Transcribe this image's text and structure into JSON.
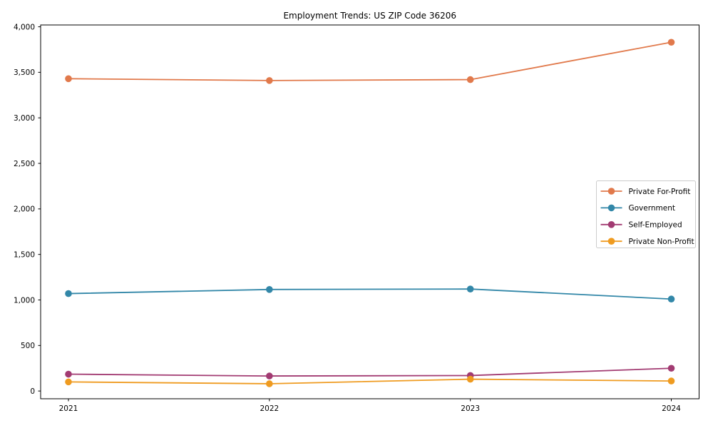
{
  "figure": {
    "title": "Employment Trends: US ZIP Code 36206"
  },
  "chart_data": {
    "type": "line",
    "title": "Employment Trends: US ZIP Code 36206",
    "categories": [
      "2021",
      "2022",
      "2023",
      "2024"
    ],
    "series": [
      {
        "name": "Private For-Profit",
        "color": "#e1794b",
        "values": [
          3430,
          3410,
          3420,
          3830
        ]
      },
      {
        "name": "Government",
        "color": "#3287a8",
        "values": [
          1070,
          1115,
          1120,
          1010
        ]
      },
      {
        "name": "Self-Employed",
        "color": "#a23b72",
        "values": [
          185,
          165,
          170,
          250
        ]
      },
      {
        "name": "Private Non-Profit",
        "color": "#ef9b20",
        "values": [
          100,
          80,
          130,
          110
        ]
      }
    ],
    "xlabel": "",
    "ylabel": "",
    "ylim": [
      -85,
      4020
    ],
    "yticks": [
      0,
      500,
      1000,
      1500,
      2000,
      2500,
      3000,
      3500,
      4000
    ],
    "ytick_labels": [
      "0",
      "500",
      "1,000",
      "1,500",
      "2,000",
      "2,500",
      "3,000",
      "3,500",
      "4,000"
    ],
    "grid": false,
    "marker": "circle",
    "legend": {
      "position": "center-right",
      "entries": [
        "Private For-Profit",
        "Government",
        "Self-Employed",
        "Private Non-Profit"
      ]
    },
    "axis_color": "#000000",
    "legend_border_color": "#cccccc"
  }
}
